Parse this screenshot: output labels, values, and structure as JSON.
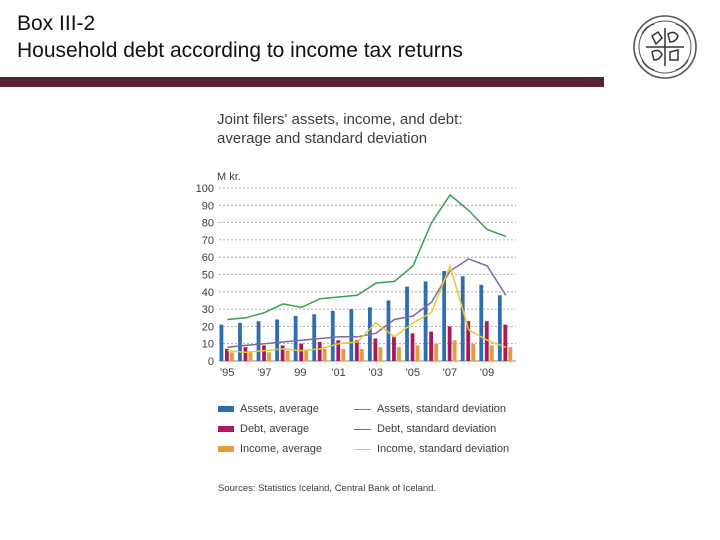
{
  "slide": {
    "title_line1": "Box III-2",
    "title_line2": "Household debt according to income tax returns"
  },
  "source": "Sources: Statistics Iceland, Central Bank of Iceland.",
  "chart_data": {
    "type": "bar",
    "title_line1": "Joint filers' assets, income, and debt:",
    "title_line2": "average and standard deviation",
    "ylabel": "M kr.",
    "ylim": [
      0,
      100
    ],
    "yticks": [
      0,
      10,
      20,
      30,
      40,
      50,
      60,
      70,
      80,
      90,
      100
    ],
    "categories": [
      "1995",
      "1996",
      "1997",
      "1998",
      "1999",
      "2000",
      "2001",
      "2002",
      "2003",
      "2004",
      "2005",
      "2006",
      "2007",
      "2008",
      "2009",
      "2010"
    ],
    "xtick_labels": [
      "'95",
      "'97",
      "99",
      "'01",
      "'03",
      "'05",
      "'07",
      "'09"
    ],
    "xtick_category_index": [
      0,
      2,
      4,
      6,
      8,
      10,
      12,
      14
    ],
    "grid": true,
    "legend_placement": "bottom",
    "bar_series": [
      {
        "name": "Assets, average",
        "color": "#2f6db0",
        "values": [
          21,
          22,
          23,
          24,
          26,
          27,
          29,
          30,
          31,
          35,
          43,
          46,
          52,
          49,
          44,
          38
        ]
      },
      {
        "name": "Debt, average",
        "color": "#b0175a",
        "values": [
          7,
          8,
          9,
          9,
          10,
          11,
          12,
          12,
          13,
          14,
          16,
          17,
          20,
          23,
          23,
          21
        ]
      },
      {
        "name": "Income, average",
        "color": "#e89a3c",
        "values": [
          5,
          5,
          5,
          6,
          6,
          7,
          7,
          7,
          8,
          8,
          9,
          10,
          12,
          10,
          9,
          8
        ]
      }
    ],
    "line_series": [
      {
        "name": "Assets, standard deviation",
        "color": "#38a04e",
        "values": [
          24,
          25,
          28,
          33,
          31,
          36,
          37,
          38,
          45,
          46,
          55,
          80,
          96,
          87,
          76,
          72
        ]
      },
      {
        "name": "Debt, standard deviation",
        "color": "#7a6aa8",
        "values": [
          8,
          9,
          10,
          11,
          12,
          13,
          14,
          14,
          16,
          24,
          26,
          34,
          52,
          59,
          55,
          38
        ]
      },
      {
        "name": "Income, standard deviation",
        "color": "#e8c832",
        "values": [
          6,
          5,
          6,
          7,
          6,
          7,
          10,
          11,
          22,
          14,
          22,
          28,
          55,
          18,
          12,
          8
        ]
      }
    ]
  }
}
